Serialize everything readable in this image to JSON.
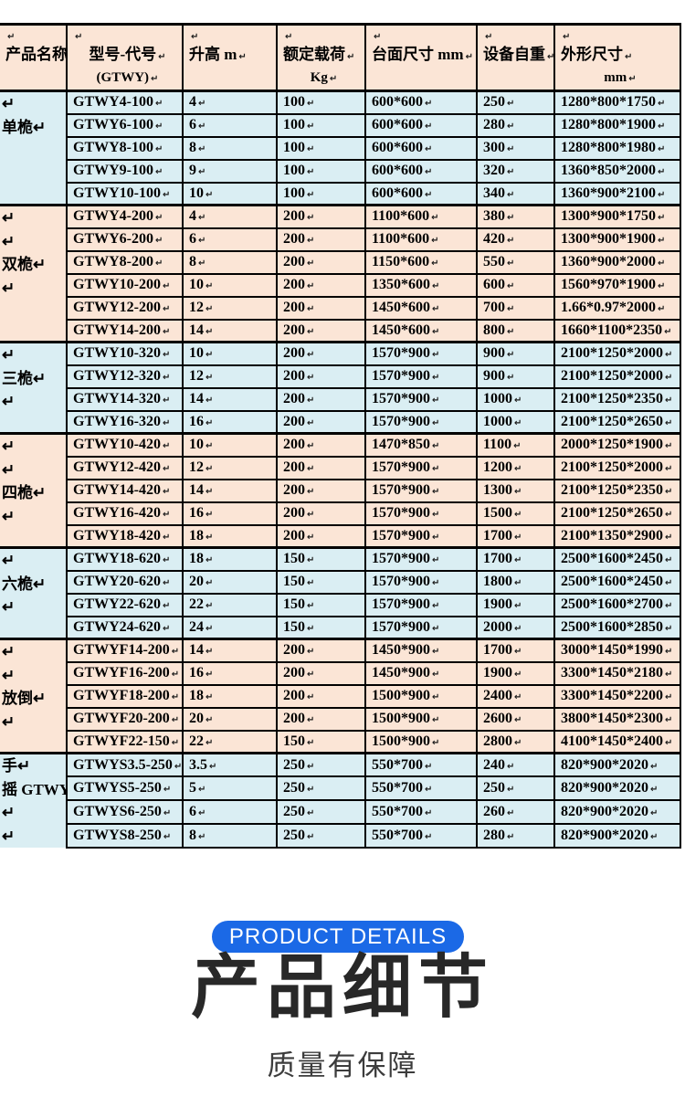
{
  "colors": {
    "peach": "#FBE5D6",
    "blue": "#DAEEF3",
    "border": "#000000",
    "badge": "#1B69E6",
    "title": "#282828",
    "subtitle": "#3C3C3C"
  },
  "table": {
    "paragraph_mark": "↵",
    "columns": [
      {
        "main": "产品名称",
        "sub": null
      },
      {
        "main": "型号-代号",
        "sub": "(GTWY)"
      },
      {
        "main": "升高 m",
        "sub": null
      },
      {
        "main": "额定载荷",
        "sub": "Kg"
      },
      {
        "main": "台面尺寸 mm",
        "sub": null
      },
      {
        "main": "设备自重",
        "sub": null
      },
      {
        "main": "外形尺寸",
        "sub": "mm"
      }
    ],
    "groups": [
      {
        "name": "单桅",
        "bg": "blue",
        "name_lines": [
          "↵",
          "单桅↵"
        ],
        "rows": [
          [
            "GTWY4-100",
            "4",
            "100",
            "600*600",
            "250",
            "1280*800*1750"
          ],
          [
            "GTWY6-100",
            "6",
            "100",
            "600*600",
            "280",
            "1280*800*1900"
          ],
          [
            "GTWY8-100",
            "8",
            "100",
            "600*600",
            "300",
            "1280*800*1980"
          ],
          [
            "GTWY9-100",
            "9",
            "100",
            "600*600",
            "320",
            "1360*850*2000"
          ],
          [
            "GTWY10-100",
            "10",
            "100",
            "600*600",
            "340",
            "1360*900*2100"
          ]
        ]
      },
      {
        "name": "双桅",
        "bg": "peach",
        "name_lines": [
          "↵",
          "↵",
          "双桅↵",
          "↵"
        ],
        "rows": [
          [
            "GTWY4-200",
            "4",
            "200",
            "1100*600",
            "380",
            "1300*900*1750"
          ],
          [
            "GTWY6-200",
            "6",
            "200",
            "1100*600",
            "420",
            "1300*900*1900"
          ],
          [
            "GTWY8-200",
            "8",
            "200",
            "1150*600",
            "550",
            "1360*900*2000"
          ],
          [
            "GTWY10-200",
            "10",
            "200",
            "1350*600",
            "600",
            "1560*970*1900"
          ],
          [
            "GTWY12-200",
            "12",
            "200",
            "1450*600",
            "700",
            "1.66*0.97*2000"
          ],
          [
            "GTWY14-200",
            "14",
            "200",
            "1450*600",
            "800",
            "1660*1100*2350"
          ]
        ]
      },
      {
        "name": "三桅",
        "bg": "blue",
        "name_lines": [
          "↵",
          "三桅↵",
          "↵"
        ],
        "rows": [
          [
            "GTWY10-320",
            "10",
            "200",
            "1570*900",
            "900",
            "2100*1250*2000"
          ],
          [
            "GTWY12-320",
            "12",
            "200",
            "1570*900",
            "900",
            "2100*1250*2000"
          ],
          [
            "GTWY14-320",
            "14",
            "200",
            "1570*900",
            "1000",
            "2100*1250*2350"
          ],
          [
            "GTWY16-320",
            "16",
            "200",
            "1570*900",
            "1000",
            "2100*1250*2650"
          ]
        ]
      },
      {
        "name": "四桅",
        "bg": "peach",
        "name_lines": [
          "↵",
          "↵",
          "四桅↵",
          "↵"
        ],
        "rows": [
          [
            "GTWY10-420",
            "10",
            "200",
            "1470*850",
            "1100",
            "2000*1250*1900"
          ],
          [
            "GTWY12-420",
            "12",
            "200",
            "1570*900",
            "1200",
            "2100*1250*2000"
          ],
          [
            "GTWY14-420",
            "14",
            "200",
            "1570*900",
            "1300",
            "2100*1250*2350"
          ],
          [
            "GTWY16-420",
            "16",
            "200",
            "1570*900",
            "1500",
            "2100*1250*2650"
          ],
          [
            "GTWY18-420",
            "18",
            "200",
            "1570*900",
            "1700",
            "2100*1350*2900"
          ]
        ]
      },
      {
        "name": "六桅",
        "bg": "blue",
        "name_lines": [
          "↵",
          "六桅↵",
          "↵"
        ],
        "rows": [
          [
            "GTWY18-620",
            "18",
            "150",
            "1570*900",
            "1700",
            "2500*1600*2450"
          ],
          [
            "GTWY20-620",
            "20",
            "150",
            "1570*900",
            "1800",
            "2500*1600*2450"
          ],
          [
            "GTWY22-620",
            "22",
            "150",
            "1570*900",
            "1900",
            "2500*1600*2700"
          ],
          [
            "GTWY24-620",
            "24",
            "150",
            "1570*900",
            "2000",
            "2500*1600*2850"
          ]
        ]
      },
      {
        "name": "放倒",
        "bg": "peach",
        "name_lines": [
          "↵",
          "↵",
          "放倒↵",
          "↵"
        ],
        "rows": [
          [
            "GTWYF14-200",
            "14",
            "200",
            "1450*900",
            "1700",
            "3000*1450*1990"
          ],
          [
            "GTWYF16-200",
            "16",
            "200",
            "1450*900",
            "1900",
            "3300*1450*2180"
          ],
          [
            "GTWYF18-200",
            "18",
            "200",
            "1500*900",
            "2400",
            "3300*1450*2200"
          ],
          [
            "GTWYF20-200",
            "20",
            "200",
            "1500*900",
            "2600",
            "3800*1450*2300"
          ],
          [
            "GTWYF22-150",
            "22",
            "150",
            "1500*900",
            "2800",
            "4100*1450*2400"
          ]
        ]
      },
      {
        "name": "手摇 GTWY",
        "bg": "blue",
        "name_lines": [
          "手↵",
          "摇 GTWY",
          "↵",
          "↵"
        ],
        "rows": [
          [
            "GTWYS3.5-250",
            "3.5",
            "250",
            "550*700",
            "240",
            "820*900*2020"
          ],
          [
            "GTWYS5-250",
            "5",
            "250",
            "550*700",
            "250",
            "820*900*2020"
          ],
          [
            "GTWYS6-250",
            "6",
            "250",
            "550*700",
            "260",
            "820*900*2020"
          ],
          [
            "GTWYS8-250",
            "8",
            "250",
            "550*700",
            "280",
            "820*900*2020"
          ]
        ]
      }
    ]
  },
  "details": {
    "badge": "PRODUCT DETAILS",
    "title": "产品细节",
    "subtitle": "质量有保障"
  }
}
